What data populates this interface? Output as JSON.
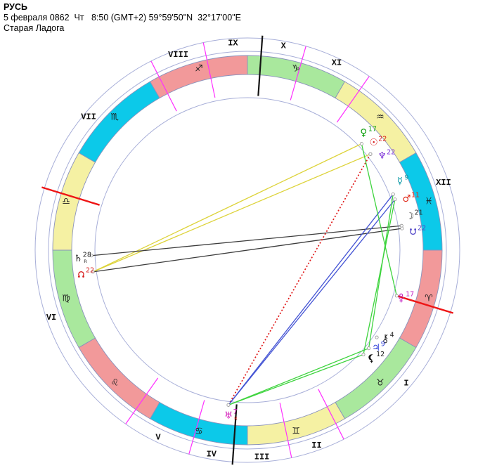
{
  "header": {
    "title": "РУСЬ",
    "datetime": "5 февраля 0862  Чт   8:50 (GMT+2) 59°59'50\"N  32°17'00\"E",
    "location": "Старая Ладога"
  },
  "chart": {
    "colors": {
      "ring": "#a7aed8",
      "band_stroke": "#8a92bc",
      "fire": "#F2999A",
      "earth": "#A9E89D",
      "air": "#F5F1A3",
      "water": "#0CC9E9",
      "cusp": "#ff2fff",
      "axis_meridian": "#151515",
      "axis_horizon": "#ee1515",
      "aspect_yellow": "#ddd33a",
      "aspect_green": "#3ed43e",
      "aspect_blue": "#4353d4",
      "aspect_dark": "#3c3c3c",
      "aspect_red": "#e01818",
      "sign_glyph": "#1f1f1f",
      "house_numeral": "#101010"
    },
    "signs": [
      {
        "name": "aries",
        "glyph": "♈",
        "element": "fire"
      },
      {
        "name": "taurus",
        "glyph": "♉",
        "element": "earth"
      },
      {
        "name": "gemini",
        "glyph": "♊",
        "element": "air"
      },
      {
        "name": "cancer",
        "glyph": "♋",
        "element": "water"
      },
      {
        "name": "leo",
        "glyph": "♌",
        "element": "fire"
      },
      {
        "name": "virgo",
        "glyph": "♍",
        "element": "earth"
      },
      {
        "name": "libra",
        "glyph": "♎",
        "element": "air"
      },
      {
        "name": "scorpio",
        "glyph": "♏",
        "element": "water"
      },
      {
        "name": "sagittarius",
        "glyph": "♐",
        "element": "fire"
      },
      {
        "name": "capricorn",
        "glyph": "♑",
        "element": "earth"
      },
      {
        "name": "aquarius",
        "glyph": "♒",
        "element": "air"
      },
      {
        "name": "pisces",
        "glyph": "♓",
        "element": "water"
      }
    ],
    "houses": [
      {
        "numeral": "I",
        "cusp_lon": 17,
        "axis": "asc"
      },
      {
        "numeral": "II",
        "cusp_lon": 63,
        "axis": null
      },
      {
        "numeral": "III",
        "cusp_lon": 78,
        "axis": null
      },
      {
        "numeral": "IV",
        "cusp_lon": 94,
        "axis": "ic"
      },
      {
        "numeral": "V",
        "cusp_lon": 106,
        "axis": null
      },
      {
        "numeral": "VI",
        "cusp_lon": 125,
        "axis": null
      },
      {
        "numeral": "VII",
        "cusp_lon": 197,
        "axis": "dsc"
      },
      {
        "numeral": "VIII",
        "cusp_lon": 243,
        "axis": null
      },
      {
        "numeral": "IX",
        "cusp_lon": 258,
        "axis": null
      },
      {
        "numeral": "X",
        "cusp_lon": 274,
        "axis": "mc"
      },
      {
        "numeral": "XI",
        "cusp_lon": 286,
        "axis": null
      },
      {
        "numeral": "XII",
        "cusp_lon": 305,
        "axis": null
      }
    ],
    "planets": [
      {
        "id": "venus",
        "symbol": "♀",
        "special": null,
        "degree": "17",
        "retrograde": false,
        "sign": "Aquarius",
        "lon": 317,
        "label_angle": 45.3,
        "label_radius": 235,
        "color": "#0a9e0a"
      },
      {
        "id": "sun",
        "symbol": "☉",
        "special": null,
        "degree": "22",
        "retrograde": false,
        "sign": "Aquarius",
        "lon": 322,
        "label_angle": 40.4,
        "label_radius": 236,
        "color": "#d81616"
      },
      {
        "id": "neptune",
        "symbol": "♆",
        "special": null,
        "degree": "22",
        "retrograde": false,
        "sign": "Aquarius",
        "lon": 322,
        "label_angle": 35.0,
        "label_radius": 234,
        "color": "#7b2fd8"
      },
      {
        "id": "mercury",
        "symbol": "☿",
        "special": null,
        "degree": "9",
        "retrograde": false,
        "sign": "Pisces",
        "lon": 339,
        "label_angle": 24.3,
        "label_radius": 238,
        "color": "#0d9ba8"
      },
      {
        "id": "mars",
        "symbol": "♂",
        "special": null,
        "degree": "11",
        "retrograde": false,
        "sign": "Pisces",
        "lon": 341,
        "label_angle": 17.9,
        "label_radius": 238,
        "color": "#e02a1a"
      },
      {
        "id": "moon",
        "symbol": "☽",
        "special": null,
        "degree": "21",
        "retrograde": false,
        "sign": "Pisces",
        "lon": 351,
        "label_angle": 11.7,
        "label_radius": 236,
        "color": "#2a2a2a"
      },
      {
        "id": "south-node",
        "symbol": null,
        "special": "snode",
        "degree": "22",
        "retrograde": false,
        "sign": "Pisces",
        "lon": 352,
        "label_angle": 6.3,
        "label_radius": 237,
        "color": "#5246c8"
      },
      {
        "id": "pluto",
        "symbol": null,
        "special": "pluto",
        "degree": "17",
        "retrograde": false,
        "sign": "Aries",
        "lon": 17,
        "label_angle": -17.3,
        "label_radius": 229,
        "color": "#c21ec2"
      },
      {
        "id": "chiron",
        "symbol": null,
        "special": "chiron",
        "degree": "4",
        "retrograde": false,
        "sign": "Taurus",
        "lon": 34,
        "label_angle": -32.7,
        "label_radius": 233,
        "color": "#1f1f1f"
      },
      {
        "id": "jupiter",
        "symbol": "♃",
        "special": null,
        "degree": "9",
        "retrograde": false,
        "sign": "Taurus",
        "lon": 39,
        "label_angle": -37.2,
        "label_radius": 230,
        "color": "#2f3fd8"
      },
      {
        "id": "lilith",
        "symbol": null,
        "special": "lilith",
        "degree": "12",
        "retrograde": false,
        "sign": "Taurus",
        "lon": 42,
        "label_angle": -41.0,
        "label_radius": 234,
        "color": "#101010"
      },
      {
        "id": "uranus",
        "symbol": "♅",
        "special": null,
        "degree": "7",
        "retrograde": true,
        "sign": "Cancer",
        "lon": 97,
        "label_angle": -96.5,
        "label_radius": 237,
        "color": "#d319b9",
        "r_color": "#d02020"
      },
      {
        "id": "saturn",
        "symbol": "♄",
        "special": null,
        "degree": "28",
        "retrograde": true,
        "sign": "Virgo",
        "lon": 178,
        "label_angle": 182.9,
        "label_radius": 241,
        "color": "#1f1f1f",
        "r_color": "#1f1f1f"
      },
      {
        "id": "north-node",
        "symbol": null,
        "special": "nnode",
        "degree": "22",
        "retrograde": false,
        "sign": "Virgo",
        "lon": 172,
        "label_angle": 188.2,
        "label_radius": 239,
        "color": "#d82020"
      }
    ],
    "aspects": [
      {
        "p1": "north-node",
        "p2": "venus",
        "color_key": "aspect_yellow",
        "style": "solid"
      },
      {
        "p1": "north-node",
        "p2": "sun",
        "color_key": "aspect_yellow",
        "style": "solid"
      },
      {
        "p1": "saturn",
        "p2": "moon",
        "color_key": "aspect_dark",
        "style": "solid"
      },
      {
        "p1": "north-node",
        "p2": "south-node",
        "color_key": "aspect_dark",
        "style": "solid"
      },
      {
        "p1": "sun",
        "p2": "uranus",
        "color_key": "aspect_red",
        "style": "dotted"
      },
      {
        "p1": "mercury",
        "p2": "uranus",
        "color_key": "aspect_blue",
        "style": "solid"
      },
      {
        "p1": "mars",
        "p2": "uranus",
        "color_key": "aspect_blue",
        "style": "solid"
      },
      {
        "p1": "venus",
        "p2": "pluto",
        "color_key": "aspect_green",
        "style": "solid"
      },
      {
        "p1": "mercury",
        "p2": "jupiter",
        "color_key": "aspect_green",
        "style": "solid"
      },
      {
        "p1": "mars",
        "p2": "lilith",
        "color_key": "aspect_green",
        "style": "solid"
      },
      {
        "p1": "jupiter",
        "p2": "uranus",
        "color_key": "aspect_green",
        "style": "solid"
      },
      {
        "p1": "lilith",
        "p2": "uranus",
        "color_key": "aspect_green",
        "style": "solid"
      }
    ]
  }
}
